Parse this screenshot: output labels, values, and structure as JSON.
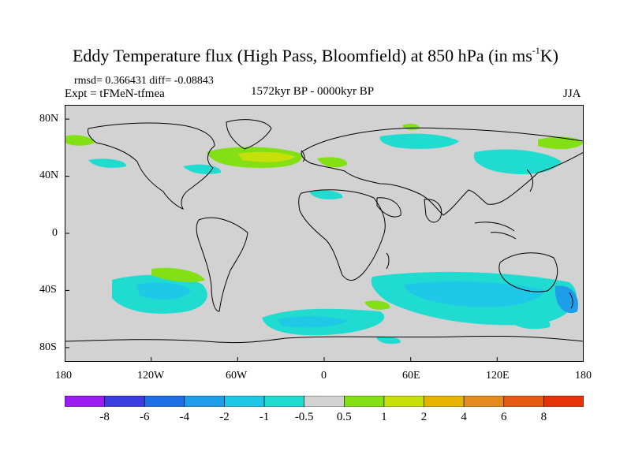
{
  "title": {
    "main": "Eddy Temperature flux (High Pass, Bloomfield) at 850 hPa (in ms",
    "sup": "-1",
    "end": "K)"
  },
  "stats": {
    "rmsd_line": "rmsd= 0.366431 diff= -0.08843"
  },
  "experiment": "Expt = tFMeN-tfmea",
  "period": "1572kyr BP - 0000kyr BP",
  "season": "JJA",
  "lat_labels": [
    "80N",
    "40N",
    "0",
    "40S",
    "80S"
  ],
  "lon_labels": [
    "180",
    "120W",
    "60W",
    "0",
    "60E",
    "120E",
    "180"
  ],
  "colorbar": {
    "labels": [
      "-8",
      "-6",
      "-4",
      "-2",
      "-1",
      "-0.5",
      "0.5",
      "1",
      "2",
      "4",
      "6",
      "8"
    ],
    "colors": [
      "#9a1cf0",
      "#3c3ce0",
      "#1e6ee6",
      "#1e9ee8",
      "#1ec8e6",
      "#20dcd0",
      "#d2d2d2",
      "#82e014",
      "#c8e00a",
      "#e6b400",
      "#e68c1e",
      "#e65a14",
      "#e6320a"
    ]
  },
  "map_colors": {
    "background": "#d2d2d2",
    "neg_weak": "#20dcd0",
    "neg": "#1ec8e6",
    "neg_strong": "#1e9ee8",
    "pos": "#82e014",
    "pos_strong": "#c8e00a",
    "coast": "#000000"
  }
}
